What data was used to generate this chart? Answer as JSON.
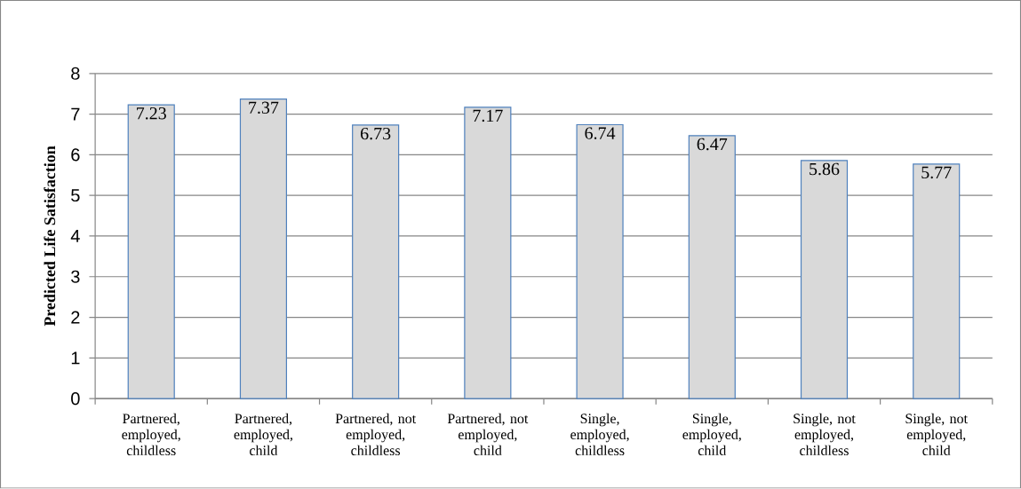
{
  "chart_data": {
    "type": "bar",
    "ylabel": "Predicted Life Satisfaction",
    "categories": [
      "Partnered, employed, childless",
      "Partnered, employed, child",
      "Partnered, not employed, childless",
      "Partnered, not employed, child",
      "Single, employed, childless",
      "Single, employed, child",
      "Single, not employed, childless",
      "Single, not employed, child"
    ],
    "values": [
      7.23,
      7.37,
      6.73,
      7.17,
      6.74,
      6.47,
      5.86,
      5.77
    ],
    "color": "#d9d9d9",
    "ylim": [
      0,
      8
    ],
    "yticks": [
      0,
      1,
      2,
      3,
      4,
      5,
      6,
      7,
      8
    ],
    "grid": "y",
    "data_labels": true
  }
}
